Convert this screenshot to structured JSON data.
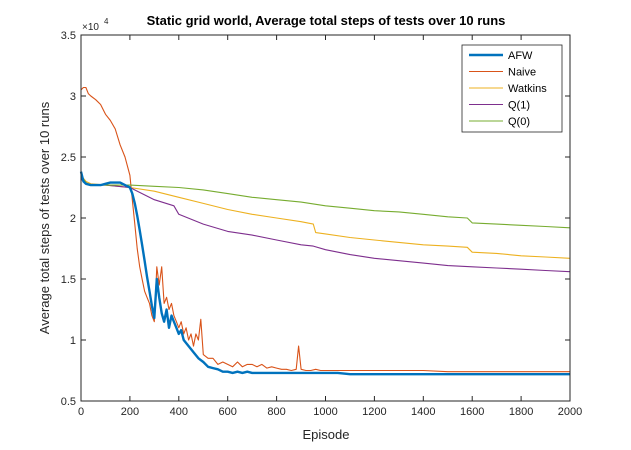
{
  "chart_data": {
    "type": "line",
    "title": "Static grid world, Average total steps of tests over 10 runs",
    "xlabel": "Episode",
    "ylabel": "Average total steps of tests over 10 runs",
    "xlim": [
      0,
      2000
    ],
    "ylim": [
      0.5,
      3.5
    ],
    "y_exponent_base": "×10",
    "y_exponent": "4",
    "x_ticks": [
      "0",
      "200",
      "400",
      "600",
      "800",
      "1000",
      "1200",
      "1400",
      "1600",
      "1800",
      "2000"
    ],
    "y_ticks": [
      "0.5",
      "1",
      "1.5",
      "2",
      "2.5",
      "3",
      "3.5"
    ],
    "grid": false,
    "legend_position": "top-right",
    "series": [
      {
        "name": "AFW",
        "color": "#0072BD",
        "x": [
          0,
          10,
          20,
          40,
          60,
          80,
          100,
          120,
          140,
          160,
          180,
          200,
          210,
          220,
          230,
          240,
          250,
          260,
          270,
          280,
          290,
          300,
          310,
          320,
          330,
          340,
          350,
          360,
          370,
          380,
          390,
          400,
          410,
          420,
          440,
          460,
          480,
          500,
          520,
          540,
          560,
          580,
          600,
          620,
          640,
          660,
          680,
          700,
          750,
          800,
          850,
          900,
          950,
          1000,
          1050,
          1100,
          1200,
          1300,
          1400,
          1500,
          1600,
          1700,
          1800,
          1900,
          2000
        ],
        "y": [
          2.38,
          2.3,
          2.28,
          2.27,
          2.27,
          2.27,
          2.28,
          2.29,
          2.29,
          2.29,
          2.27,
          2.25,
          2.2,
          2.12,
          2.02,
          1.9,
          1.78,
          1.65,
          1.52,
          1.4,
          1.28,
          1.18,
          1.5,
          1.35,
          1.22,
          1.15,
          1.25,
          1.1,
          1.2,
          1.15,
          1.1,
          1.05,
          1.08,
          1.0,
          0.95,
          0.9,
          0.85,
          0.82,
          0.78,
          0.77,
          0.76,
          0.74,
          0.74,
          0.73,
          0.74,
          0.73,
          0.74,
          0.73,
          0.73,
          0.73,
          0.73,
          0.73,
          0.73,
          0.73,
          0.73,
          0.72,
          0.72,
          0.72,
          0.72,
          0.72,
          0.72,
          0.72,
          0.72,
          0.72,
          0.72
        ]
      },
      {
        "name": "Naive",
        "color": "#D95319",
        "x": [
          0,
          10,
          20,
          30,
          40,
          60,
          80,
          100,
          120,
          140,
          160,
          180,
          200,
          210,
          220,
          230,
          240,
          250,
          260,
          270,
          280,
          290,
          300,
          310,
          320,
          330,
          340,
          350,
          360,
          370,
          380,
          390,
          400,
          410,
          420,
          430,
          440,
          450,
          460,
          470,
          480,
          490,
          500,
          520,
          540,
          560,
          580,
          600,
          620,
          640,
          660,
          680,
          700,
          720,
          740,
          760,
          780,
          800,
          820,
          840,
          860,
          880,
          890,
          900,
          920,
          940,
          960,
          980,
          1000,
          1050,
          1100,
          1200,
          1300,
          1400,
          1500,
          1600,
          1700,
          1800,
          1900,
          2000
        ],
        "y": [
          3.05,
          3.07,
          3.07,
          3.02,
          3.0,
          2.97,
          2.93,
          2.85,
          2.8,
          2.73,
          2.6,
          2.5,
          2.35,
          2.15,
          1.95,
          1.75,
          1.6,
          1.5,
          1.4,
          1.35,
          1.3,
          1.2,
          1.15,
          1.6,
          1.45,
          1.6,
          1.3,
          1.35,
          1.25,
          1.3,
          1.2,
          1.15,
          1.1,
          1.15,
          1.05,
          1.1,
          1.0,
          1.05,
          0.95,
          1.05,
          1.0,
          1.17,
          0.88,
          0.85,
          0.85,
          0.8,
          0.82,
          0.8,
          0.78,
          0.82,
          0.78,
          0.8,
          0.8,
          0.78,
          0.8,
          0.77,
          0.78,
          0.77,
          0.76,
          0.76,
          0.75,
          0.76,
          0.95,
          0.76,
          0.75,
          0.75,
          0.76,
          0.75,
          0.75,
          0.75,
          0.75,
          0.75,
          0.75,
          0.75,
          0.74,
          0.74,
          0.74,
          0.74,
          0.74,
          0.74
        ]
      },
      {
        "name": "Watkins",
        "color": "#EDB120",
        "x": [
          0,
          20,
          40,
          100,
          200,
          300,
          400,
          500,
          600,
          700,
          800,
          900,
          950,
          960,
          1000,
          1100,
          1200,
          1300,
          1400,
          1500,
          1580,
          1600,
          1700,
          1800,
          1900,
          2000
        ],
        "y": [
          2.35,
          2.3,
          2.28,
          2.27,
          2.25,
          2.22,
          2.17,
          2.12,
          2.07,
          2.03,
          2.0,
          1.97,
          1.95,
          1.88,
          1.87,
          1.84,
          1.82,
          1.8,
          1.78,
          1.77,
          1.76,
          1.72,
          1.71,
          1.69,
          1.68,
          1.67
        ]
      },
      {
        "name": "Q(1)",
        "color": "#7E2F8E",
        "x": [
          0,
          20,
          40,
          100,
          200,
          300,
          380,
          400,
          500,
          600,
          700,
          800,
          900,
          950,
          1000,
          1100,
          1200,
          1300,
          1400,
          1500,
          1600,
          1700,
          1800,
          1900,
          2000
        ],
        "y": [
          2.32,
          2.28,
          2.27,
          2.27,
          2.25,
          2.15,
          2.1,
          2.03,
          1.95,
          1.89,
          1.86,
          1.82,
          1.78,
          1.77,
          1.74,
          1.7,
          1.67,
          1.65,
          1.63,
          1.61,
          1.6,
          1.59,
          1.58,
          1.57,
          1.56
        ]
      },
      {
        "name": "Q(0)",
        "color": "#77AC30",
        "x": [
          0,
          20,
          40,
          100,
          200,
          300,
          400,
          500,
          600,
          700,
          800,
          900,
          1000,
          1100,
          1200,
          1300,
          1400,
          1500,
          1580,
          1600,
          1700,
          1800,
          1900,
          2000
        ],
        "y": [
          2.35,
          2.29,
          2.27,
          2.27,
          2.27,
          2.26,
          2.25,
          2.23,
          2.2,
          2.17,
          2.15,
          2.13,
          2.1,
          2.08,
          2.06,
          2.05,
          2.03,
          2.01,
          2.0,
          1.96,
          1.95,
          1.94,
          1.93,
          1.92
        ]
      }
    ]
  }
}
